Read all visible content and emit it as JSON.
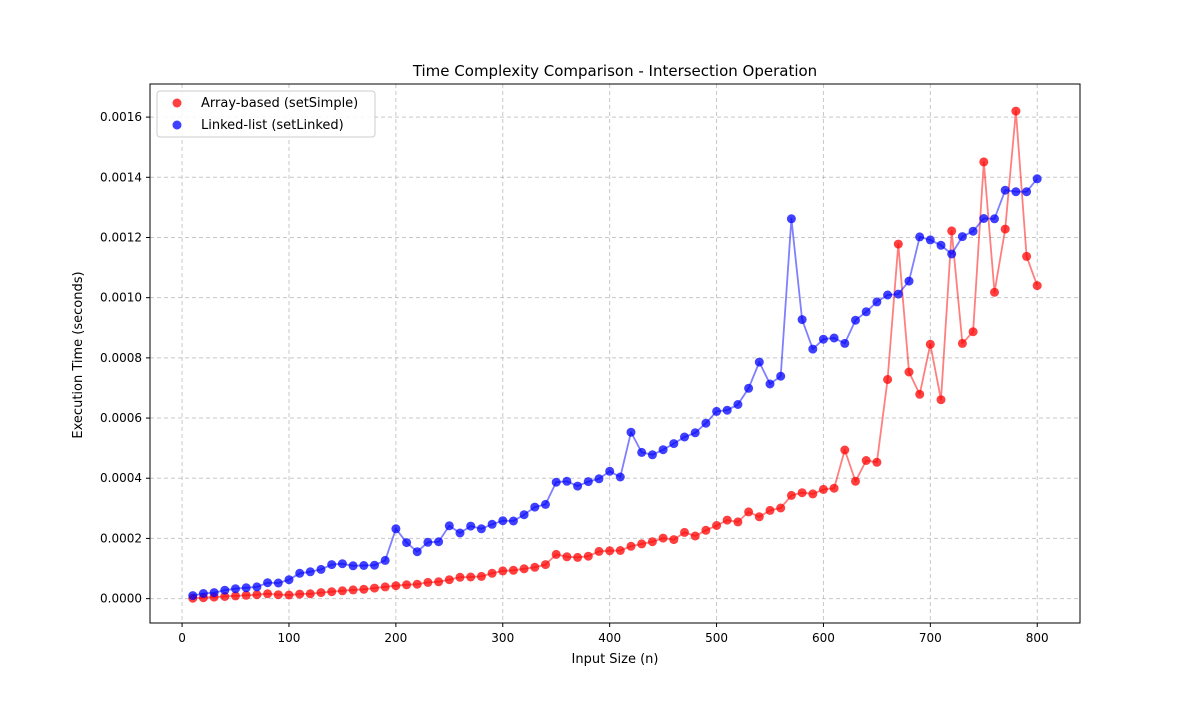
{
  "chart_data": {
    "type": "scatter",
    "title": "Time Complexity Comparison - Intersection Operation",
    "xlabel": "Input Size (n)",
    "ylabel": "Execution Time (seconds)",
    "xlim": [
      -30,
      840
    ],
    "ylim": [
      -8.1e-05,
      0.00171
    ],
    "xticks": [
      0,
      100,
      200,
      300,
      400,
      500,
      600,
      700,
      800
    ],
    "xtick_labels": [
      "0",
      "100",
      "200",
      "300",
      "400",
      "500",
      "600",
      "700",
      "800"
    ],
    "yticks": [
      0,
      0.0002,
      0.0004,
      0.0006,
      0.0008,
      0.001,
      0.0012,
      0.0014,
      0.0016
    ],
    "ytick_labels": [
      "0.0000",
      "0.0002",
      "0.0004",
      "0.0006",
      "0.0008",
      "0.0010",
      "0.0012",
      "0.0014",
      "0.0016"
    ],
    "grid": true,
    "legend_position": "upper-left",
    "x": [
      10,
      20,
      30,
      40,
      50,
      60,
      70,
      80,
      90,
      100,
      110,
      120,
      130,
      140,
      150,
      160,
      170,
      180,
      190,
      200,
      210,
      220,
      230,
      240,
      250,
      260,
      270,
      280,
      290,
      300,
      310,
      320,
      330,
      340,
      350,
      360,
      370,
      380,
      390,
      400,
      410,
      420,
      430,
      440,
      450,
      460,
      470,
      480,
      490,
      500,
      510,
      520,
      530,
      540,
      550,
      560,
      570,
      580,
      590,
      600,
      610,
      620,
      630,
      640,
      650,
      660,
      670,
      680,
      690,
      700,
      710,
      720,
      730,
      740,
      750,
      760,
      770,
      780,
      790,
      800
    ],
    "series": [
      {
        "name": "Array-based (setSimple)",
        "color": "#ff0000",
        "values": [
          1.5e-06,
          3e-06,
          5e-06,
          7e-06,
          9e-06,
          1.1e-05,
          1.3e-05,
          1.6e-05,
          1.3e-05,
          1.2e-05,
          1.5e-05,
          1.6e-05,
          2e-05,
          2.3e-05,
          2.6e-05,
          2.9e-05,
          3.1e-05,
          3.5e-05,
          3.9e-05,
          4.3e-05,
          4.6e-05,
          4.8e-05,
          5.4e-05,
          5.6e-05,
          6.3e-05,
          7.1e-05,
          7.2e-05,
          7.4e-05,
          8.4e-05,
          9.2e-05,
          9.4e-05,
          9.9e-05,
          0.000104,
          0.000113,
          0.000147,
          0.000139,
          0.000137,
          0.000141,
          0.000157,
          0.000159,
          0.00016,
          0.000174,
          0.000182,
          0.000189,
          0.000201,
          0.000196,
          0.00022,
          0.000208,
          0.000227,
          0.000243,
          0.000261,
          0.000255,
          0.000288,
          0.000272,
          0.000293,
          0.000301,
          0.000343,
          0.000352,
          0.000348,
          0.000363,
          0.000367,
          0.000494,
          0.00039,
          0.000459,
          0.000453,
          0.000728,
          0.001178,
          0.000753,
          0.000679,
          0.000845,
          0.000661,
          0.001222,
          0.000848,
          0.000887,
          0.001451,
          0.001018,
          0.001228,
          0.00162,
          0.001137,
          0.00104
        ]
      },
      {
        "name": "Linked-list (setLinked)",
        "color": "#0000ff",
        "values": [
          1e-05,
          1.7e-05,
          2e-05,
          2.8e-05,
          3.3e-05,
          3.6e-05,
          3.9e-05,
          5.3e-05,
          5.2e-05,
          6.3e-05,
          8.4e-05,
          8.9e-05,
          9.7e-05,
          0.000113,
          0.000116,
          0.000109,
          0.00011,
          0.000111,
          0.000127,
          0.000232,
          0.000186,
          0.000156,
          0.000187,
          0.000189,
          0.000242,
          0.000218,
          0.000241,
          0.000232,
          0.000247,
          0.000259,
          0.000258,
          0.000279,
          0.000304,
          0.000313,
          0.000387,
          0.00039,
          0.000374,
          0.000389,
          0.000398,
          0.000423,
          0.000404,
          0.000553,
          0.000486,
          0.000478,
          0.000495,
          0.000515,
          0.000537,
          0.000551,
          0.000583,
          0.000622,
          0.000626,
          0.000645,
          0.000699,
          0.000786,
          0.000713,
          0.000739,
          0.001262,
          0.000927,
          0.000829,
          0.000862,
          0.000866,
          0.000848,
          0.000925,
          0.000953,
          0.000986,
          0.001009,
          0.001012,
          0.001055,
          0.001202,
          0.001192,
          0.001174,
          0.001145,
          0.001203,
          0.001221,
          0.001263,
          0.001262,
          0.001357,
          0.001352,
          0.001352,
          0.001395
        ]
      }
    ]
  }
}
